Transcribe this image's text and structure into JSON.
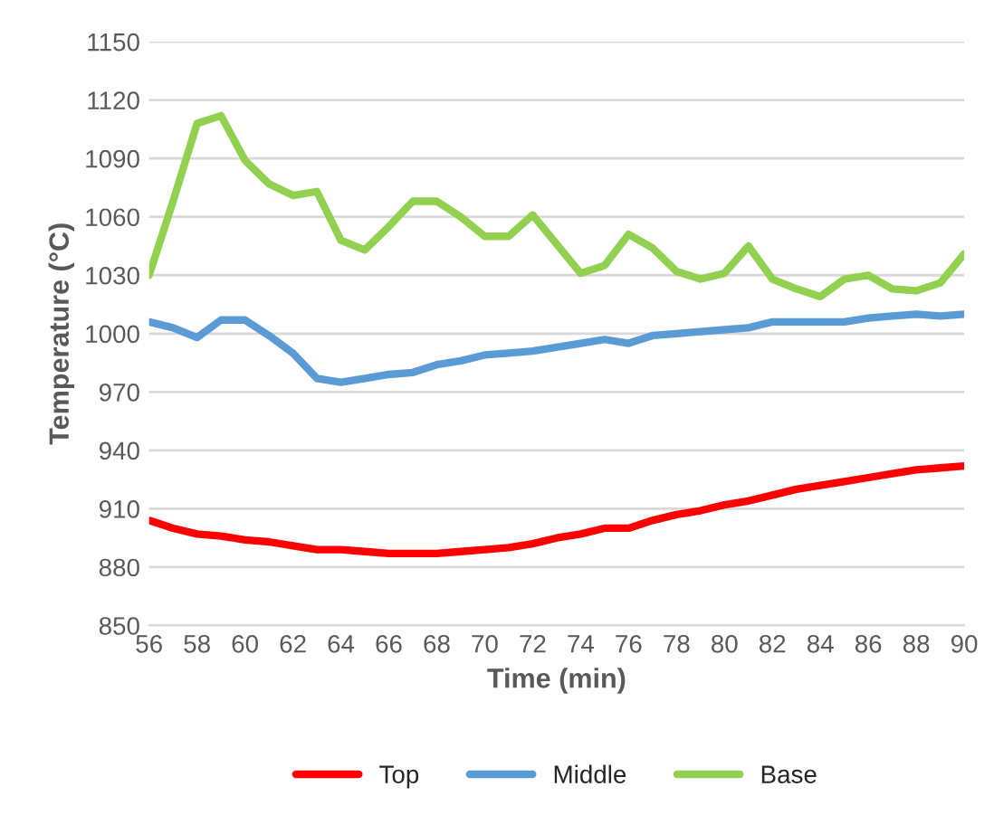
{
  "chart_data": {
    "type": "line",
    "xlabel": "Time (min)",
    "ylabel": "Temperature (°C)",
    "x": [
      56,
      57,
      58,
      59,
      60,
      61,
      62,
      63,
      64,
      65,
      66,
      67,
      68,
      69,
      70,
      71,
      72,
      73,
      74,
      75,
      76,
      77,
      78,
      79,
      80,
      81,
      82,
      83,
      84,
      85,
      86,
      87,
      88,
      89,
      90
    ],
    "xlim": [
      56,
      90
    ],
    "xticks": [
      56,
      58,
      60,
      62,
      64,
      66,
      68,
      70,
      72,
      74,
      76,
      78,
      80,
      82,
      84,
      86,
      88,
      90
    ],
    "ylim": [
      850,
      1150
    ],
    "yticks": [
      850,
      880,
      910,
      940,
      970,
      1000,
      1030,
      1060,
      1090,
      1120,
      1150
    ],
    "grid": "y",
    "legend": "bottom",
    "marker": "none",
    "line_style": "solid",
    "series": [
      {
        "name": "Top",
        "color": "#ff0000",
        "values": [
          904,
          900,
          897,
          896,
          894,
          893,
          891,
          889,
          889,
          888,
          887,
          887,
          887,
          888,
          889,
          890,
          892,
          895,
          897,
          900,
          900,
          904,
          907,
          909,
          912,
          914,
          917,
          920,
          922,
          924,
          926,
          928,
          930,
          931,
          932
        ]
      },
      {
        "name": "Middle",
        "color": "#5b9bd5",
        "values": [
          1006,
          1003,
          998,
          1007,
          1007,
          999,
          990,
          977,
          975,
          977,
          979,
          980,
          984,
          986,
          989,
          990,
          991,
          993,
          995,
          997,
          995,
          999,
          1000,
          1001,
          1002,
          1003,
          1006,
          1006,
          1006,
          1006,
          1008,
          1009,
          1010,
          1009,
          1010
        ]
      },
      {
        "name": "Base",
        "color": "#92d050",
        "values": [
          1030,
          1068,
          1108,
          1112,
          1089,
          1077,
          1071,
          1073,
          1048,
          1043,
          1055,
          1068,
          1068,
          1060,
          1050,
          1050,
          1061,
          1046,
          1031,
          1035,
          1051,
          1044,
          1032,
          1028,
          1031,
          1045,
          1028,
          1023,
          1019,
          1028,
          1030,
          1023,
          1022,
          1026,
          1041
        ]
      }
    ]
  }
}
